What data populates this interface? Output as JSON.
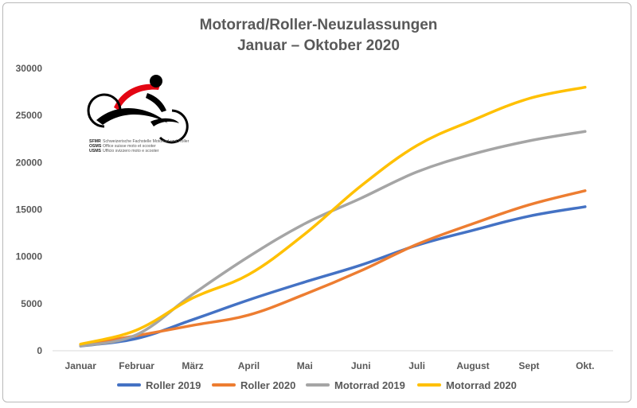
{
  "chart_data": {
    "type": "line",
    "title": "Motorrad/Roller-Neuzulassungen",
    "subtitle": "Januar – Oktober 2020",
    "categories": [
      "Januar",
      "Februar",
      "März",
      "April",
      "Mai",
      "Juni",
      "Juli",
      "August",
      "Sept",
      "Okt."
    ],
    "ylim": [
      0,
      30000
    ],
    "yticks": [
      "0",
      "5000",
      "10000",
      "15000",
      "20000",
      "25000",
      "30000"
    ],
    "grid": false,
    "legend_position": "bottom",
    "series": [
      {
        "name": "Roller 2019",
        "color": "#4472C4",
        "values": [
          500,
          1300,
          3300,
          5400,
          7300,
          9100,
          11200,
          12800,
          14300,
          15300
        ]
      },
      {
        "name": "Roller 2020",
        "color": "#ED7D31",
        "values": [
          600,
          1600,
          2700,
          3800,
          6000,
          8500,
          11300,
          13500,
          15500,
          17000
        ]
      },
      {
        "name": "Motorrad 2019",
        "color": "#A5A5A5",
        "values": [
          500,
          1700,
          6000,
          10000,
          13500,
          16200,
          19000,
          20900,
          22300,
          23300
        ]
      },
      {
        "name": "Motorrad 2020",
        "color": "#FFC000",
        "values": [
          700,
          2200,
          5600,
          8100,
          12400,
          17500,
          21800,
          24500,
          26800,
          28000
        ]
      }
    ]
  },
  "logo": {
    "lines": [
      {
        "abbr": "SFMR",
        "text": "Schweizerische Fachstelle Motorrad und Roller"
      },
      {
        "abbr": "OSMS",
        "text": "Office suisse moto et scooter"
      },
      {
        "abbr": "USMS",
        "text": "Ufficio svizzero moto e scooter"
      }
    ]
  }
}
